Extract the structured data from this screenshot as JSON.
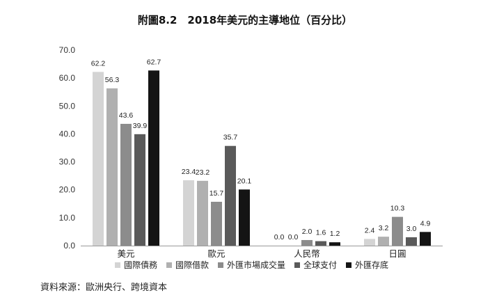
{
  "title": "附圖8.2　2018年美元的主導地位（百分比）",
  "source": "資料來源：歐洲央行、跨境資本",
  "chart_data": {
    "type": "bar",
    "title": "附圖8.2　2018年美元的主導地位（百分比）",
    "categories": [
      "美元",
      "歐元",
      "人民幣",
      "日圓"
    ],
    "series": [
      {
        "name": "國際債務",
        "color": "#d4d4d4",
        "values": [
          62.2,
          23.4,
          0.0,
          2.4
        ]
      },
      {
        "name": "國際借款",
        "color": "#b0b0b0",
        "values": [
          56.3,
          23.2,
          0.0,
          3.2
        ]
      },
      {
        "name": "外匯市場成交量",
        "color": "#8c8c8c",
        "values": [
          43.6,
          15.7,
          2.0,
          10.3
        ]
      },
      {
        "name": "全球支付",
        "color": "#5a5a5a",
        "values": [
          39.9,
          35.7,
          1.6,
          3.0
        ]
      },
      {
        "name": "外匯存底",
        "color": "#141414",
        "values": [
          62.7,
          20.1,
          1.2,
          4.9
        ]
      }
    ],
    "ylim": [
      0,
      70
    ],
    "yticks": [
      "0.0",
      "10.0",
      "20.0",
      "30.0",
      "40.0",
      "50.0",
      "60.0",
      "70.0"
    ],
    "grid": false,
    "legend": "bottom",
    "xlabel": "",
    "ylabel": ""
  }
}
